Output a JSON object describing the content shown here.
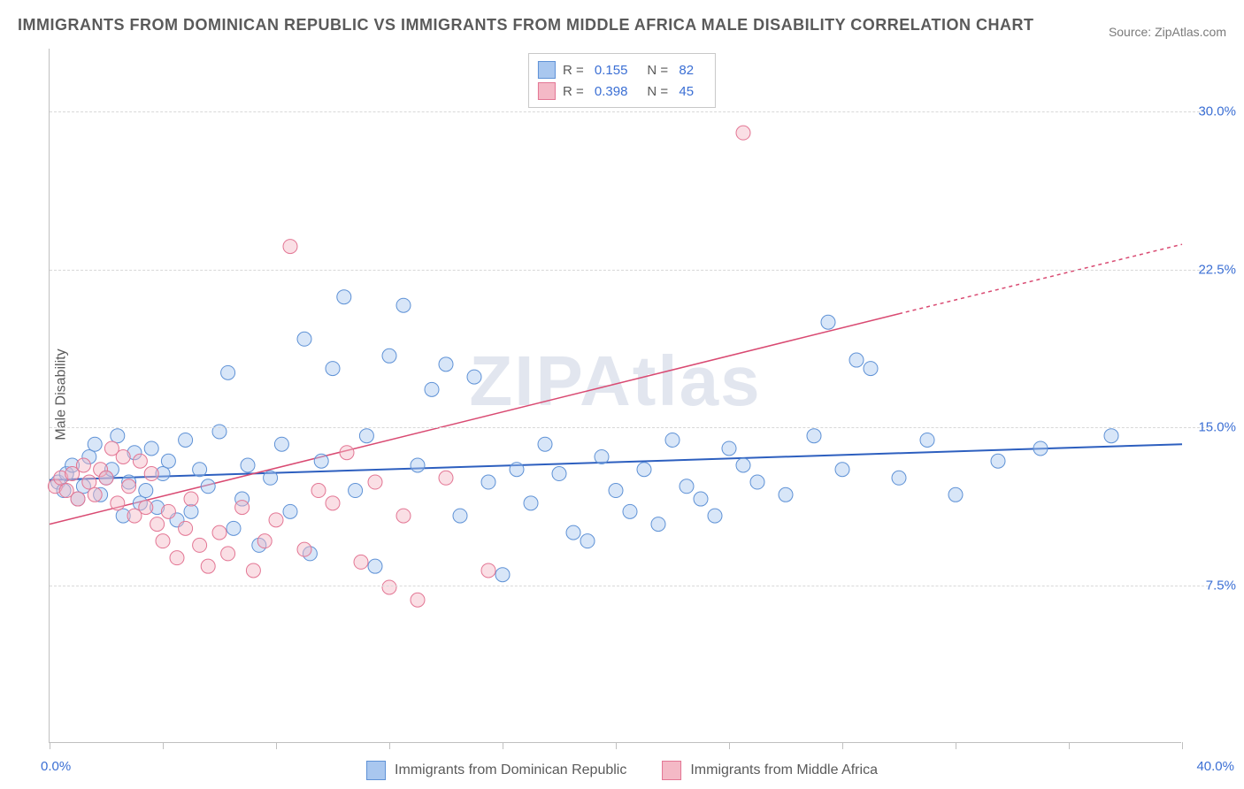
{
  "title": "IMMIGRANTS FROM DOMINICAN REPUBLIC VS IMMIGRANTS FROM MIDDLE AFRICA MALE DISABILITY CORRELATION CHART",
  "source": "Source: ZipAtlas.com",
  "ylabel": "Male Disability",
  "watermark": "ZIPAtlas",
  "chart": {
    "type": "scatter",
    "xlim": [
      0,
      40
    ],
    "ylim": [
      0,
      33
    ],
    "xtick_min_label": "0.0%",
    "xtick_max_label": "40.0%",
    "xtick_positions": [
      0,
      4,
      8,
      12,
      16,
      20,
      24,
      28,
      32,
      36,
      40
    ],
    "ytick_labels": [
      "7.5%",
      "15.0%",
      "22.5%",
      "30.0%"
    ],
    "ytick_values": [
      7.5,
      15.0,
      22.5,
      30.0
    ],
    "background_color": "#ffffff",
    "grid_color": "#d8d8d8",
    "axis_color": "#c0c0c0",
    "tick_label_color": "#3b6fd4",
    "text_color": "#5a5a5a",
    "marker_radius": 8,
    "marker_opacity": 0.45,
    "series": [
      {
        "name": "Immigrants from Dominican Republic",
        "color_fill": "#a9c7ef",
        "color_stroke": "#5f92d6",
        "r_value": "0.155",
        "n_value": "82",
        "trend": {
          "x1": 0,
          "y1": 12.5,
          "x2": 40,
          "y2": 14.2,
          "stroke": "#2d5fbf",
          "width": 2,
          "dashed_from": 40
        },
        "points": [
          [
            0.3,
            12.4
          ],
          [
            0.5,
            12.0
          ],
          [
            0.6,
            12.8
          ],
          [
            0.8,
            13.2
          ],
          [
            1.0,
            11.6
          ],
          [
            1.2,
            12.2
          ],
          [
            1.4,
            13.6
          ],
          [
            1.6,
            14.2
          ],
          [
            1.8,
            11.8
          ],
          [
            2.0,
            12.6
          ],
          [
            2.2,
            13.0
          ],
          [
            2.4,
            14.6
          ],
          [
            2.6,
            10.8
          ],
          [
            2.8,
            12.4
          ],
          [
            3.0,
            13.8
          ],
          [
            3.2,
            11.4
          ],
          [
            3.4,
            12.0
          ],
          [
            3.6,
            14.0
          ],
          [
            3.8,
            11.2
          ],
          [
            4.0,
            12.8
          ],
          [
            4.2,
            13.4
          ],
          [
            4.5,
            10.6
          ],
          [
            4.8,
            14.4
          ],
          [
            5.0,
            11.0
          ],
          [
            5.3,
            13.0
          ],
          [
            5.6,
            12.2
          ],
          [
            6.0,
            14.8
          ],
          [
            6.3,
            17.6
          ],
          [
            6.5,
            10.2
          ],
          [
            6.8,
            11.6
          ],
          [
            7.0,
            13.2
          ],
          [
            7.4,
            9.4
          ],
          [
            7.8,
            12.6
          ],
          [
            8.2,
            14.2
          ],
          [
            8.5,
            11.0
          ],
          [
            9.0,
            19.2
          ],
          [
            9.2,
            9.0
          ],
          [
            9.6,
            13.4
          ],
          [
            10.0,
            17.8
          ],
          [
            10.4,
            21.2
          ],
          [
            10.8,
            12.0
          ],
          [
            11.2,
            14.6
          ],
          [
            11.5,
            8.4
          ],
          [
            12.0,
            18.4
          ],
          [
            12.5,
            20.8
          ],
          [
            13.0,
            13.2
          ],
          [
            13.5,
            16.8
          ],
          [
            14.0,
            18.0
          ],
          [
            14.5,
            10.8
          ],
          [
            15.0,
            17.4
          ],
          [
            15.5,
            12.4
          ],
          [
            16.0,
            8.0
          ],
          [
            16.5,
            13.0
          ],
          [
            17.0,
            11.4
          ],
          [
            17.5,
            14.2
          ],
          [
            18.0,
            12.8
          ],
          [
            18.5,
            10.0
          ],
          [
            19.0,
            9.6
          ],
          [
            19.5,
            13.6
          ],
          [
            20.0,
            12.0
          ],
          [
            20.5,
            11.0
          ],
          [
            21.0,
            13.0
          ],
          [
            21.5,
            10.4
          ],
          [
            22.0,
            14.4
          ],
          [
            22.5,
            12.2
          ],
          [
            23.0,
            11.6
          ],
          [
            23.5,
            10.8
          ],
          [
            24.0,
            14.0
          ],
          [
            24.5,
            13.2
          ],
          [
            25.0,
            12.4
          ],
          [
            26.0,
            11.8
          ],
          [
            27.0,
            14.6
          ],
          [
            27.5,
            20.0
          ],
          [
            28.0,
            13.0
          ],
          [
            28.5,
            18.2
          ],
          [
            29.0,
            17.8
          ],
          [
            30.0,
            12.6
          ],
          [
            31.0,
            14.4
          ],
          [
            32.0,
            11.8
          ],
          [
            33.5,
            13.4
          ],
          [
            35.0,
            14.0
          ],
          [
            37.5,
            14.6
          ]
        ]
      },
      {
        "name": "Immigrants from Middle Africa",
        "color_fill": "#f4b9c6",
        "color_stroke": "#e37694",
        "r_value": "0.398",
        "n_value": "45",
        "trend": {
          "x1": 0,
          "y1": 10.4,
          "x2": 30,
          "y2": 20.4,
          "stroke": "#d94a72",
          "width": 1.5,
          "dashed_from": 30,
          "dash_x2": 40,
          "dash_y2": 23.7
        },
        "points": [
          [
            0.2,
            12.2
          ],
          [
            0.4,
            12.6
          ],
          [
            0.6,
            12.0
          ],
          [
            0.8,
            12.8
          ],
          [
            1.0,
            11.6
          ],
          [
            1.2,
            13.2
          ],
          [
            1.4,
            12.4
          ],
          [
            1.6,
            11.8
          ],
          [
            1.8,
            13.0
          ],
          [
            2.0,
            12.6
          ],
          [
            2.2,
            14.0
          ],
          [
            2.4,
            11.4
          ],
          [
            2.6,
            13.6
          ],
          [
            2.8,
            12.2
          ],
          [
            3.0,
            10.8
          ],
          [
            3.2,
            13.4
          ],
          [
            3.4,
            11.2
          ],
          [
            3.6,
            12.8
          ],
          [
            3.8,
            10.4
          ],
          [
            4.0,
            9.6
          ],
          [
            4.2,
            11.0
          ],
          [
            4.5,
            8.8
          ],
          [
            4.8,
            10.2
          ],
          [
            5.0,
            11.6
          ],
          [
            5.3,
            9.4
          ],
          [
            5.6,
            8.4
          ],
          [
            6.0,
            10.0
          ],
          [
            6.3,
            9.0
          ],
          [
            6.8,
            11.2
          ],
          [
            7.2,
            8.2
          ],
          [
            7.6,
            9.6
          ],
          [
            8.0,
            10.6
          ],
          [
            8.5,
            23.6
          ],
          [
            9.0,
            9.2
          ],
          [
            9.5,
            12.0
          ],
          [
            10.0,
            11.4
          ],
          [
            10.5,
            13.8
          ],
          [
            11.0,
            8.6
          ],
          [
            11.5,
            12.4
          ],
          [
            12.0,
            7.4
          ],
          [
            12.5,
            10.8
          ],
          [
            13.0,
            6.8
          ],
          [
            14.0,
            12.6
          ],
          [
            15.5,
            8.2
          ],
          [
            24.5,
            29.0
          ]
        ]
      }
    ],
    "legend_position": "top-center"
  }
}
